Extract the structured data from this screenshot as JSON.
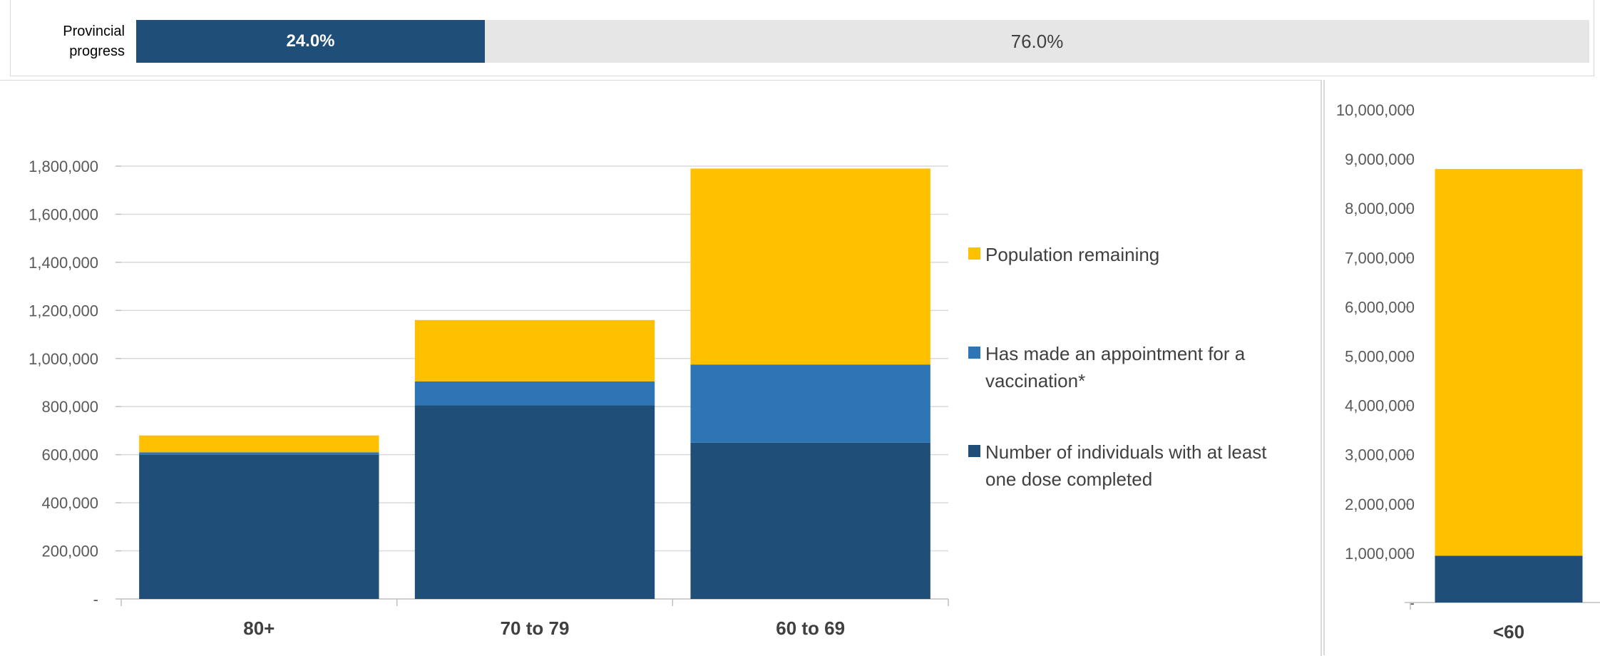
{
  "progress": {
    "label_line1": "Provincial",
    "label_line2": "progress",
    "completed_pct": 24.0,
    "completed_label": "24.0%",
    "remaining_label": "76.0%",
    "colors": {
      "completed": "#1f4e79",
      "remaining": "#e6e6e6"
    }
  },
  "chart_data": [
    {
      "type": "bar",
      "stacked": true,
      "categories": [
        "80+",
        "70 to 79",
        "60 to 69"
      ],
      "series": [
        {
          "name": "Number of individuals with at least one dose completed",
          "color": "#1f4e79",
          "values": [
            600000,
            805000,
            650000
          ]
        },
        {
          "name": "Has made an appointment for a vaccination*",
          "color": "#2e75b6",
          "values": [
            10000,
            100000,
            325000
          ]
        },
        {
          "name": "Population remaining",
          "color": "#ffc000",
          "values": [
            70000,
            255000,
            815000
          ]
        }
      ],
      "yticks": [
        "-",
        "200,000",
        "400,000",
        "600,000",
        "800,000",
        "1,000,000",
        "1,200,000",
        "1,400,000",
        "1,600,000",
        "1,800,000"
      ],
      "ylim": [
        0,
        1800000
      ],
      "grid": true,
      "legend": {
        "position": "right",
        "entries": [
          {
            "color": "#ffc000",
            "lines": [
              "Population remaining"
            ]
          },
          {
            "color": "#2e75b6",
            "lines": [
              "Has made an appointment for a",
              "vaccination*"
            ]
          },
          {
            "color": "#1f4e79",
            "lines": [
              "Number of individuals with at least",
              "one dose completed"
            ]
          }
        ]
      }
    },
    {
      "type": "bar",
      "stacked": true,
      "categories": [
        "<60"
      ],
      "series": [
        {
          "name": "Number of individuals with at least one dose completed",
          "color": "#1f4e79",
          "values": [
            950000
          ]
        },
        {
          "name": "Has made an appointment for a vaccination*",
          "color": "#2e75b6",
          "values": [
            0
          ]
        },
        {
          "name": "Population remaining",
          "color": "#ffc000",
          "values": [
            7850000
          ]
        }
      ],
      "yticks": [
        "-",
        "1,000,000",
        "2,000,000",
        "3,000,000",
        "4,000,000",
        "5,000,000",
        "6,000,000",
        "7,000,000",
        "8,000,000",
        "9,000,000",
        "10,000,000"
      ],
      "ylim": [
        0,
        10000000
      ],
      "grid": false
    }
  ]
}
